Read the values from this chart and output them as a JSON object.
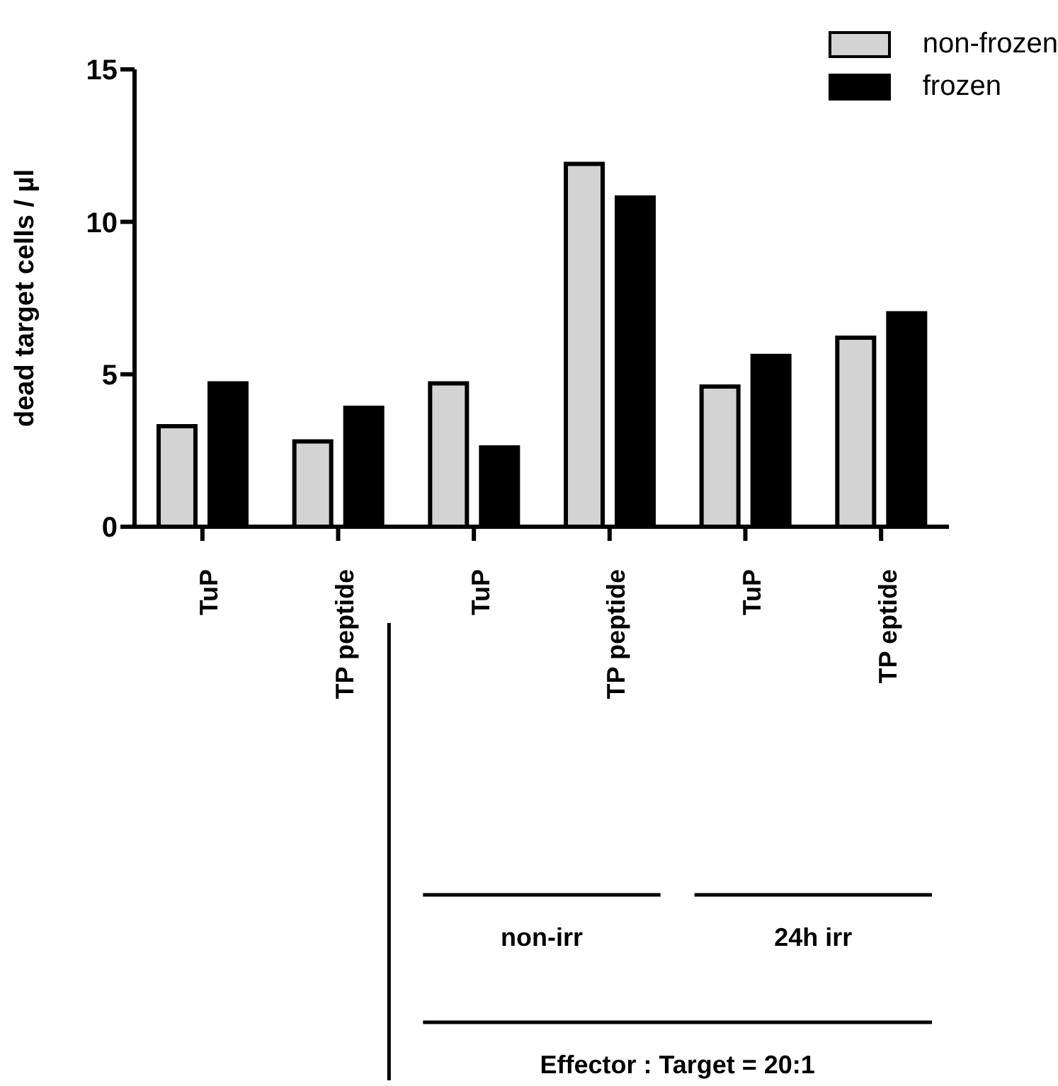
{
  "chart_data": {
    "type": "bar",
    "ylabel": "dead target cells / µl",
    "categories": [
      "TuP",
      "TP peptide",
      "TuP",
      "TP peptide",
      "TuP",
      "TP eptide"
    ],
    "series": [
      {
        "name": "non-frozen",
        "color": "#d3d3d3",
        "values": [
          3.3,
          2.8,
          4.7,
          11.9,
          4.6,
          6.2
        ]
      },
      {
        "name": "frozen",
        "color": "#000000",
        "values": [
          4.7,
          3.9,
          2.6,
          10.8,
          5.6,
          7.0
        ]
      }
    ],
    "ylim": [
      0,
      15
    ],
    "yticks": [
      0,
      5,
      10,
      15
    ],
    "grid": false,
    "legend": "top right",
    "annotations": [
      "non-irr",
      "24h irr",
      "Effector : Target = 20:1"
    ]
  }
}
